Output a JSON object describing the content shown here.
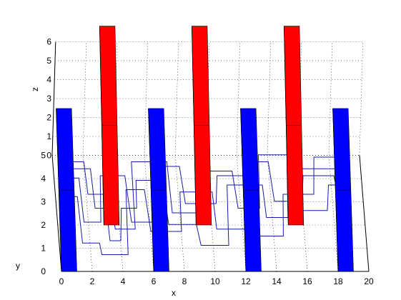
{
  "chart_data": {
    "type": "3d-bar-path",
    "title": "",
    "xlabel": "x",
    "ylabel": "y",
    "zlabel": "z",
    "xlim": [
      0,
      20
    ],
    "ylim": [
      0,
      5
    ],
    "zlim": [
      0,
      6
    ],
    "x_ticks": [
      "0",
      "2",
      "4",
      "6",
      "8",
      "10",
      "12",
      "14",
      "16",
      "18",
      "20"
    ],
    "y_ticks": [
      "0",
      "1",
      "2",
      "3",
      "4",
      "5"
    ],
    "z_ticks": [
      "0",
      "1",
      "2",
      "3",
      "4",
      "5",
      "6"
    ],
    "grid": true,
    "colors": {
      "blue_blocks": "#0000ff",
      "red_blocks": "#ff0000",
      "paths": "#1a1aaa"
    },
    "blue_blocks": [
      {
        "x": [
          0,
          1
        ],
        "y": [
          0,
          4
        ],
        "z": [
          0,
          3.7
        ]
      },
      {
        "x": [
          6,
          7
        ],
        "y": [
          0,
          4
        ],
        "z": [
          0,
          3.7
        ]
      },
      {
        "x": [
          12,
          13
        ],
        "y": [
          0,
          4
        ],
        "z": [
          0,
          3.7
        ]
      },
      {
        "x": [
          18,
          19
        ],
        "y": [
          0,
          4
        ],
        "z": [
          0,
          3.7
        ]
      }
    ],
    "red_blocks": [
      {
        "x": [
          3,
          4
        ],
        "y": [
          2,
          6
        ],
        "z": [
          0,
          5.6
        ]
      },
      {
        "x": [
          9,
          10
        ],
        "y": [
          2,
          6
        ],
        "z": [
          0,
          5.6
        ]
      },
      {
        "x": [
          15,
          16
        ],
        "y": [
          2,
          6
        ],
        "z": [
          0,
          5.6
        ]
      }
    ]
  }
}
